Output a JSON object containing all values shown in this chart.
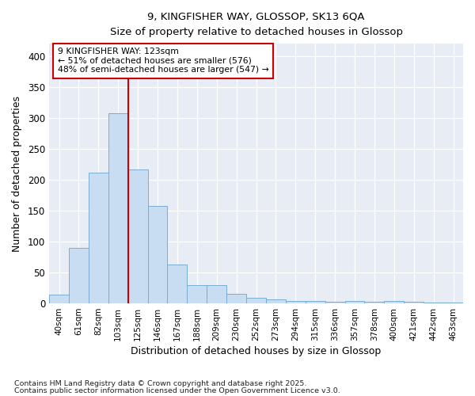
{
  "title1": "9, KINGFISHER WAY, GLOSSOP, SK13 6QA",
  "title2": "Size of property relative to detached houses in Glossop",
  "xlabel": "Distribution of detached houses by size in Glossop",
  "ylabel": "Number of detached properties",
  "bar_labels": [
    "40sqm",
    "61sqm",
    "82sqm",
    "103sqm",
    "125sqm",
    "146sqm",
    "167sqm",
    "188sqm",
    "209sqm",
    "230sqm",
    "252sqm",
    "273sqm",
    "294sqm",
    "315sqm",
    "336sqm",
    "357sqm",
    "378sqm",
    "400sqm",
    "421sqm",
    "442sqm",
    "463sqm"
  ],
  "bar_values": [
    14,
    90,
    212,
    307,
    216,
    158,
    63,
    30,
    30,
    15,
    9,
    6,
    4,
    4,
    3,
    4,
    3,
    4,
    3,
    2,
    1
  ],
  "bar_color": "#c8ddf2",
  "bar_edge_color": "#7aadd4",
  "annotation_line1": "9 KINGFISHER WAY: 123sqm",
  "annotation_line2": "← 51% of detached houses are smaller (576)",
  "annotation_line3": "48% of semi-detached houses are larger (547) →",
  "vline_color": "#cc0000",
  "box_color": "#cc0000",
  "ylim": [
    0,
    420
  ],
  "yticks": [
    0,
    50,
    100,
    150,
    200,
    250,
    300,
    350,
    400
  ],
  "footnote1": "Contains HM Land Registry data © Crown copyright and database right 2025.",
  "footnote2": "Contains public sector information licensed under the Open Government Licence v3.0.",
  "fig_bg_color": "#ffffff",
  "plot_bg_color": "#e8edf5"
}
